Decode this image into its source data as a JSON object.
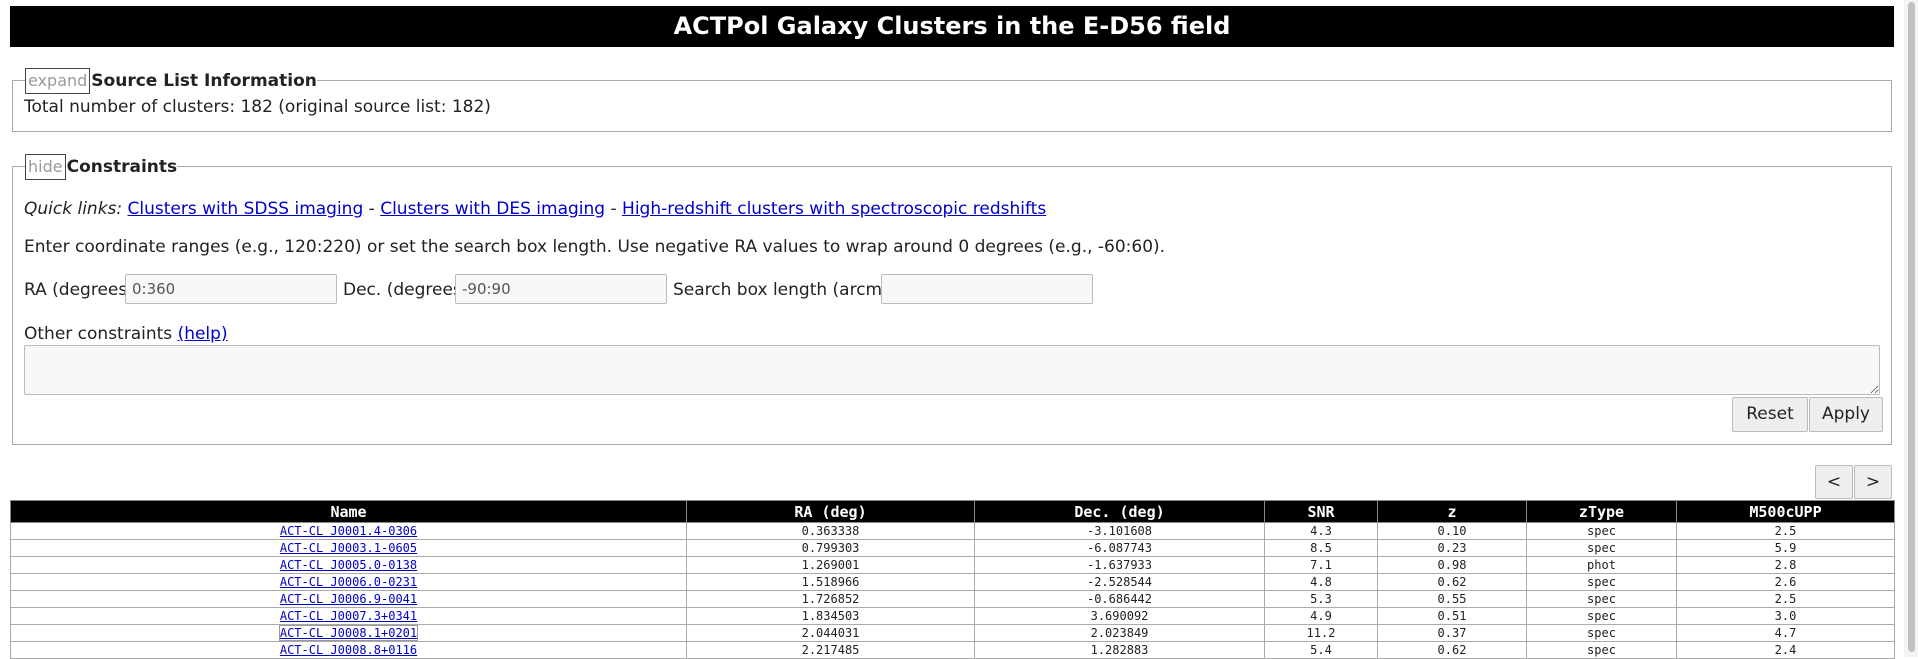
{
  "page": {
    "title": "ACTPol Galaxy Clusters in the E-D56 field"
  },
  "source_info": {
    "toggle_label": "expand",
    "legend": "Source List Information",
    "summary": "Total number of clusters: 182 (original source list: 182)"
  },
  "constraints": {
    "toggle_label": "hide",
    "legend": "Constraints",
    "quick_links_label": "Quick links:",
    "quick_links": [
      "Clusters with SDSS imaging",
      "Clusters with DES imaging",
      "High-redshift clusters with spectroscopic redshifts"
    ],
    "separator": " - ",
    "instructions": "Enter coordinate ranges (e.g., 120:220) or set the search box length. Use negative RA values to wrap around 0 degrees (e.g., -60:60).",
    "ra_label": "RA (degrees)",
    "ra_value": "0:360",
    "dec_label": "Dec. (degrees)",
    "dec_value": "-90:90",
    "box_label": "Search box length (arcmin)",
    "box_value": "",
    "other_label": "Other constraints",
    "help_link": "(help)",
    "other_value": "",
    "reset_label": "Reset",
    "apply_label": "Apply"
  },
  "pager": {
    "prev_label": "<",
    "next_label": ">"
  },
  "table": {
    "columns": [
      "Name",
      "RA (deg)",
      "Dec. (deg)",
      "SNR",
      "z",
      "zType",
      "M500cUPP"
    ],
    "rows": [
      [
        "ACT-CL J0001.4-0306",
        "0.363338",
        "-3.101608",
        "4.3",
        "0.10",
        "spec",
        "2.5"
      ],
      [
        "ACT-CL J0003.1-0605",
        "0.799303",
        "-6.087743",
        "8.5",
        "0.23",
        "spec",
        "5.9"
      ],
      [
        "ACT-CL J0005.0-0138",
        "1.269001",
        "-1.637933",
        "7.1",
        "0.98",
        "phot",
        "2.8"
      ],
      [
        "ACT-CL J0006.0-0231",
        "1.518966",
        "-2.528544",
        "4.8",
        "0.62",
        "spec",
        "2.6"
      ],
      [
        "ACT-CL J0006.9-0041",
        "1.726852",
        "-0.686442",
        "5.3",
        "0.55",
        "spec",
        "2.5"
      ],
      [
        "ACT-CL J0007.3+0341",
        "1.834503",
        "3.690092",
        "4.9",
        "0.51",
        "spec",
        "3.0"
      ],
      [
        "ACT-CL J0008.1+0201",
        "2.044031",
        "2.023849",
        "11.2",
        "0.37",
        "spec",
        "4.7"
      ],
      [
        "ACT-CL J0008.8+0116",
        "2.217485",
        "1.282883",
        "5.4",
        "0.62",
        "spec",
        "2.4"
      ]
    ]
  }
}
